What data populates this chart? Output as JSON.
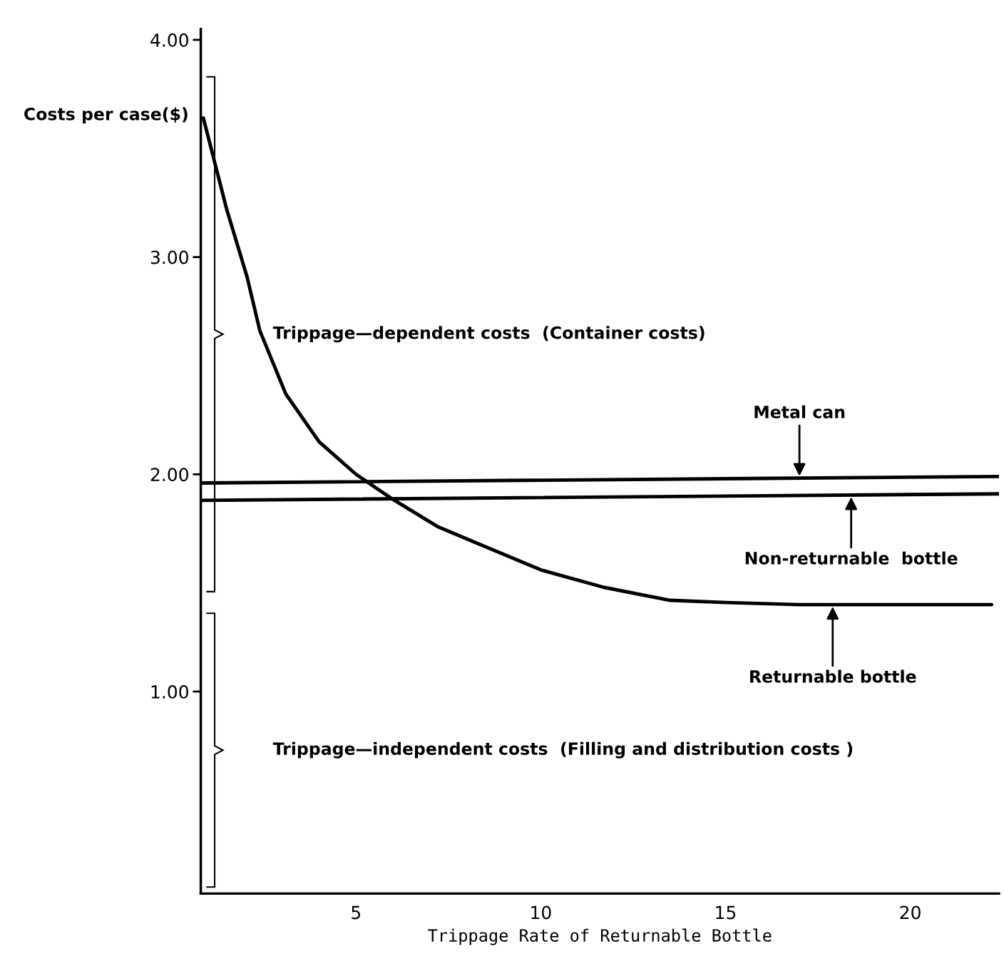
{
  "chart_data": {
    "type": "line",
    "xlabel": "Trippage Rate of Returnable Bottle",
    "ylabel": "Costs per case($)",
    "series": [
      {
        "name": "Metal can",
        "color": "#000000",
        "x": [
          0.8,
          22.4
        ],
        "values": [
          1.96,
          1.99
        ]
      },
      {
        "name": "Non-returnable  bottle",
        "color": "#000000",
        "x": [
          0.8,
          22.4
        ],
        "values": [
          1.88,
          1.91
        ]
      },
      {
        "name": "Returnable bottle",
        "color": "#000000",
        "x": [
          0.87,
          1.5,
          2.05,
          2.4,
          3.1,
          4.0,
          5.0,
          5.95,
          7.2,
          8.45,
          10.0,
          11.7,
          13.5,
          15.0,
          17.0,
          22.2
        ],
        "values": [
          3.64,
          3.22,
          2.91,
          2.66,
          2.37,
          2.15,
          2.0,
          1.89,
          1.76,
          1.67,
          1.56,
          1.48,
          1.42,
          1.41,
          1.4,
          1.4
        ]
      }
    ],
    "annotations": [
      "Trippage—dependent costs  (Container costs)",
      "Trippage—independent costs  (Filling and distribution costs )"
    ],
    "xlim": [
      0.8,
      22.4
    ],
    "ylim": [
      0.07,
      4.05
    ],
    "xticks": [
      5,
      10,
      15,
      20
    ],
    "yticks": [
      {
        "value": 1,
        "label": "1.00"
      },
      {
        "value": 2,
        "label": "2.00"
      },
      {
        "value": 3,
        "label": "3.00"
      },
      {
        "value": 4,
        "label": "4.00"
      }
    ],
    "grid": false,
    "legend": false,
    "marker": "none",
    "line_style": "solid"
  }
}
